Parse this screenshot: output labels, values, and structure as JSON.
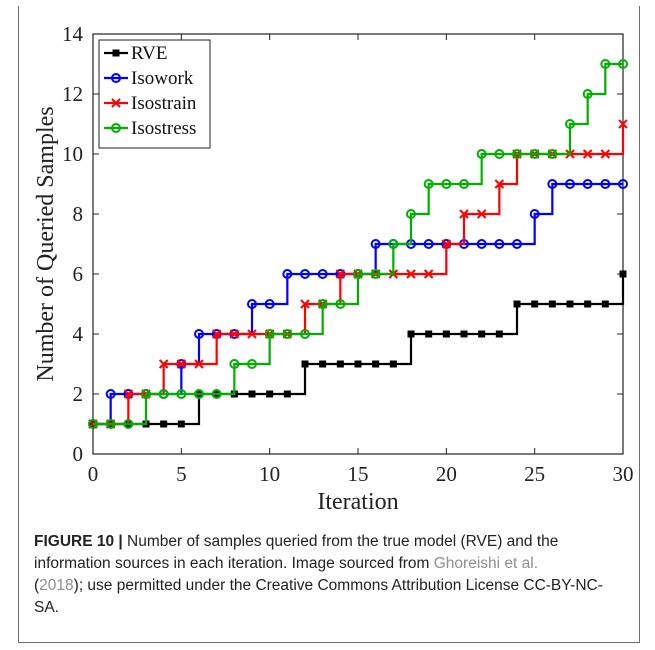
{
  "chart_data": {
    "type": "line",
    "step": true,
    "xlabel": "Iteration",
    "ylabel": "Number of Queried Samples",
    "xlim": [
      0,
      30
    ],
    "ylim": [
      0,
      14
    ],
    "xticks": [
      0,
      5,
      10,
      15,
      20,
      25,
      30
    ],
    "yticks": [
      0,
      2,
      4,
      6,
      8,
      10,
      12,
      14
    ],
    "grid": false,
    "legend": "top-left",
    "x": [
      0,
      1,
      2,
      3,
      4,
      5,
      6,
      7,
      8,
      9,
      10,
      11,
      12,
      13,
      14,
      15,
      16,
      17,
      18,
      19,
      20,
      21,
      22,
      23,
      24,
      25,
      26,
      27,
      28,
      29,
      30
    ],
    "series": [
      {
        "name": "RVE",
        "color": "#000000",
        "marker": "square",
        "values": [
          1,
          1,
          1,
          1,
          1,
          1,
          2,
          2,
          2,
          2,
          2,
          2,
          3,
          3,
          3,
          3,
          3,
          3,
          4,
          4,
          4,
          4,
          4,
          4,
          5,
          5,
          5,
          5,
          5,
          5,
          6
        ]
      },
      {
        "name": "Isowork",
        "color": "#0000ff",
        "marker": "circle",
        "values": [
          1,
          2,
          2,
          2,
          2,
          3,
          4,
          4,
          4,
          5,
          5,
          6,
          6,
          6,
          6,
          6,
          7,
          7,
          7,
          7,
          7,
          7,
          7,
          7,
          7,
          8,
          9,
          9,
          9,
          9,
          9
        ]
      },
      {
        "name": "Isostrain",
        "color": "#ff0000",
        "marker": "x",
        "values": [
          1,
          1,
          2,
          2,
          3,
          3,
          3,
          4,
          4,
          4,
          4,
          4,
          5,
          5,
          6,
          6,
          6,
          6,
          6,
          6,
          7,
          8,
          8,
          9,
          10,
          10,
          10,
          10,
          10,
          10,
          11
        ]
      },
      {
        "name": "Isostress",
        "color": "#00b000",
        "marker": "circle",
        "values": [
          1,
          1,
          1,
          2,
          2,
          2,
          2,
          2,
          3,
          3,
          4,
          4,
          4,
          5,
          5,
          6,
          6,
          7,
          8,
          9,
          9,
          9,
          10,
          10,
          10,
          10,
          10,
          11,
          12,
          13,
          13
        ]
      }
    ]
  },
  "caption": {
    "label": "FIGURE 10 |",
    "text1": " Number of samples queried from the true model (RVE) and the information sources in each iteration. Image sourced from ",
    "link1": "Ghoreishi et al.",
    "link2": "(",
    "year": "2018",
    "text2": "); use permitted under the Creative Commons Attribution License CC-BY-NC-SA."
  }
}
